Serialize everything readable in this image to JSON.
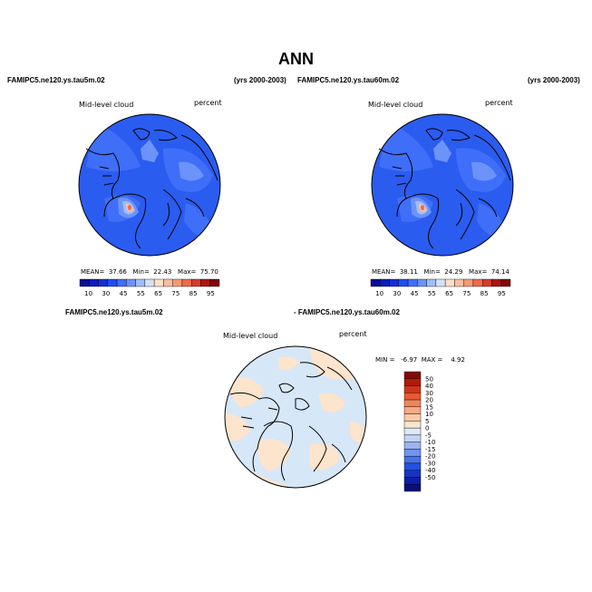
{
  "title": "ANN",
  "colors": {
    "abs_palette": [
      "#0a0f96",
      "#0b1ebe",
      "#1030dc",
      "#1d4ef0",
      "#3f6ef8",
      "#6b93fa",
      "#a1bdf8",
      "#d2e1f7",
      "#fde0c8",
      "#fbbfa0",
      "#f79a74",
      "#ef6a4a",
      "#d93a2a",
      "#b01414",
      "#820808"
    ],
    "diff_palette": [
      "#0a0f7a",
      "#0c1ea6",
      "#1434c8",
      "#2452e0",
      "#4672ec",
      "#6f94f2",
      "#9ab4f4",
      "#c4d4f6",
      "#ddeafa",
      "#fde4cc",
      "#fbc8a8",
      "#f8a882",
      "#f28458",
      "#e85a34",
      "#d23418",
      "#b01a0a",
      "#820a04"
    ],
    "ocean_fill": "#2b5cf0",
    "diff_fill": "#d6e7f8"
  },
  "panels": [
    {
      "case": "FAMIPC5.ne120.ys.tau5m.02",
      "years": "(yrs 2000-2003)",
      "variable": "Mid-level cloud",
      "units": "percent",
      "stats": {
        "mean_label": "MEAN=",
        "mean": "37.66",
        "min_label": "Min=",
        "min": "22.43",
        "max_label": "Max=",
        "max": "75.70"
      }
    },
    {
      "case": "FAMIPC5.ne120.ys.tau60m.02",
      "years": "(yrs 2000-2003)",
      "variable": "Mid-level cloud",
      "units": "percent",
      "stats": {
        "mean_label": "MEAN=",
        "mean": "38.11",
        "min_label": "Min=",
        "min": "24.29",
        "max_label": "Max=",
        "max": "74.14"
      }
    }
  ],
  "diff": {
    "case_a": "FAMIPC5.ne120.ys.tau5m.02",
    "case_b": "- FAMIPC5.ne120.ys.tau60m.02",
    "variable": "Mid-level cloud",
    "units": "percent",
    "min_label": "MIN =",
    "min": "-6.97",
    "max_label": "MAX =",
    "max": "4.92"
  },
  "chart_data": [
    {
      "type": "heatmap",
      "title": "Mid-level cloud",
      "units": "percent",
      "projection": "north polar stereographic",
      "colorbar_ticks": [
        "10",
        "30",
        "45",
        "55",
        "65",
        "75",
        "85",
        "95"
      ],
      "stats": {
        "mean": 37.66,
        "min": 22.43,
        "max": 75.7
      }
    },
    {
      "type": "heatmap",
      "title": "Mid-level cloud",
      "units": "percent",
      "projection": "north polar stereographic",
      "colorbar_ticks": [
        "10",
        "30",
        "45",
        "55",
        "65",
        "75",
        "85",
        "95"
      ],
      "stats": {
        "mean": 38.11,
        "min": 24.29,
        "max": 74.14
      }
    },
    {
      "type": "heatmap",
      "title": "Mid-level cloud",
      "units": "percent",
      "projection": "north polar stereographic",
      "colorbar_ticks": [
        "50",
        "40",
        "30",
        "20",
        "15",
        "10",
        "5",
        "0",
        "-5",
        "-10",
        "-15",
        "-20",
        "-30",
        "-40",
        "-50"
      ],
      "stats": {
        "min": -6.97,
        "max": 4.92
      }
    }
  ]
}
